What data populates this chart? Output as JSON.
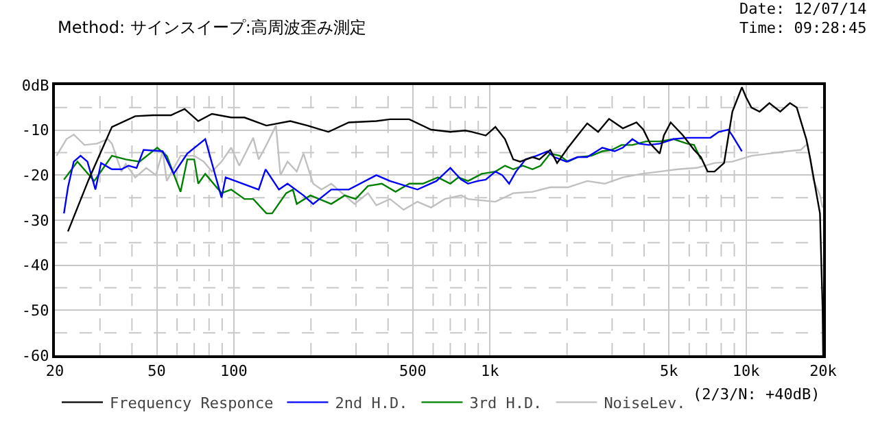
{
  "chart_data": {
    "type": "line",
    "subtitle": "Method: サインスイープ:高周波歪み測定",
    "annotations": [
      "Date: 12/07/14",
      "Time: 09:28:45",
      "(2/3/N: +40dB)"
    ],
    "log": "x",
    "grid": true,
    "legend": "bottom",
    "marker": "none",
    "line_style": "solid",
    "xlim": [
      20,
      20000
    ],
    "xticks": [
      20,
      {
        "value": 30,
        "label": null
      },
      {
        "value": 40,
        "label": null
      },
      50,
      {
        "value": 60,
        "label": null
      },
      {
        "value": 70,
        "label": null
      },
      {
        "value": 80,
        "label": null
      },
      {
        "value": 90,
        "label": null
      },
      100,
      {
        "value": 200,
        "label": null
      },
      {
        "value": 300,
        "label": null
      },
      {
        "value": 400,
        "label": null
      },
      500,
      {
        "value": 600,
        "label": null
      },
      {
        "value": 700,
        "label": null
      },
      {
        "value": 800,
        "label": null
      },
      {
        "value": 900,
        "label": null
      },
      {
        "value": 1000,
        "label": "1k"
      },
      {
        "value": 2000,
        "label": null
      },
      {
        "value": 3000,
        "label": null
      },
      {
        "value": 4000,
        "label": null
      },
      {
        "value": 5000,
        "label": "5k"
      },
      {
        "value": 6000,
        "label": null
      },
      {
        "value": 7000,
        "label": null
      },
      {
        "value": 8000,
        "label": null
      },
      {
        "value": 9000,
        "label": null
      },
      {
        "value": 10000,
        "label": "10k"
      },
      {
        "value": 20000,
        "label": "20k"
      }
    ],
    "ylim": [
      -60,
      0
    ],
    "yticks": [
      {
        "value": -60,
        "label": "-60"
      },
      {
        "value": -55,
        "label": null
      },
      -50,
      {
        "value": -45,
        "label": null
      },
      -40,
      {
        "value": -35,
        "label": null
      },
      -30,
      {
        "value": -25,
        "label": null
      },
      -20,
      {
        "value": -15,
        "label": null
      },
      -10,
      {
        "value": -5,
        "label": null
      },
      {
        "value": 0,
        "label": "0dB"
      }
    ],
    "series": [
      {
        "name": "Frequency Responce",
        "color": "#000000",
        "x": [
          22.5,
          27.1,
          33.4,
          41.2,
          48.3,
          56.8,
          64.2,
          72.6,
          82.1,
          97.6,
          110,
          134,
          166,
          194,
          234,
          281,
          360,
          407,
          484,
          589,
          700,
          801,
          852,
          963,
          1050,
          1145,
          1233,
          1312,
          1466,
          1560,
          1719,
          1829,
          2018,
          2199,
          2398,
          2645,
          2918,
          3303,
          3734,
          3972,
          4224,
          4603,
          4777,
          5080,
          5675,
          6266,
          6664,
          7081,
          7534,
          8207,
          8843,
          9636,
          10000,
          10500,
          11300,
          12330,
          13600,
          14840,
          15780,
          17190,
          17830,
          19440,
          19910,
          20000
        ],
        "values": [
          -32.5,
          -21,
          -9.3,
          -6.9,
          -6.7,
          -6.7,
          -5.3,
          -8,
          -6.4,
          -7.2,
          -7.2,
          -9,
          -8,
          -9,
          -10.4,
          -8.3,
          -8,
          -7.6,
          -7.6,
          -9.9,
          -10.4,
          -10.1,
          -10.4,
          -11.2,
          -9.3,
          -12,
          -16.5,
          -17,
          -16,
          -16.5,
          -14.4,
          -17.3,
          -13.9,
          -11.2,
          -8.5,
          -10.4,
          -7.5,
          -9.6,
          -8.3,
          -9.9,
          -13,
          -15.2,
          -11.2,
          -8.3,
          -11.2,
          -14.4,
          -16,
          -19.2,
          -19.2,
          -17.3,
          -5.9,
          -0.5,
          -2.7,
          -5,
          -5.9,
          -4,
          -5.9,
          -4,
          -5,
          -12,
          -16.5,
          -28.5,
          -50,
          -60
        ]
      },
      {
        "name": "2nd H.D.",
        "color": "#0000ff",
        "x": [
          21.7,
          22.5,
          23.7,
          25.2,
          26.8,
          28.8,
          30.3,
          33.4,
          36.4,
          38.8,
          41.7,
          44.4,
          52.7,
          58.2,
          65.8,
          77.3,
          89.5,
          92.9,
          125,
          133,
          150,
          162,
          187,
          204,
          240,
          281,
          360,
          407,
          521,
          618,
          700,
          772,
          821,
          895,
          963,
          1050,
          1117,
          1188,
          1264,
          1377,
          1520,
          1678,
          1783,
          1991,
          2199,
          2398,
          2747,
          3067,
          3303,
          3598,
          3826,
          4171,
          4603,
          5206,
          5888,
          6416,
          7262,
          7819,
          8518,
          8843,
          9636
        ],
        "values": [
          -28.5,
          -22.7,
          -17,
          -15.7,
          -17,
          -23.2,
          -17.3,
          -18.7,
          -18.7,
          -17.9,
          -18.4,
          -14.4,
          -14.7,
          -19.7,
          -15.2,
          -12,
          -25,
          -20.5,
          -23.2,
          -18.7,
          -23.2,
          -21.9,
          -24.5,
          -26.4,
          -23.2,
          -23.2,
          -20,
          -21.3,
          -23.2,
          -21.3,
          -18.4,
          -21,
          -21.9,
          -21.3,
          -21,
          -19.2,
          -20,
          -21.9,
          -19.2,
          -16.5,
          -15.7,
          -14.7,
          -16,
          -17,
          -16,
          -16,
          -13.9,
          -14.7,
          -13.9,
          -12,
          -13,
          -13.3,
          -13,
          -12,
          -11.7,
          -11.7,
          -11.7,
          -10.4,
          -9.9,
          -11.2,
          -14.7
        ]
      },
      {
        "name": "3rd H.D.",
        "color": "#008000",
        "x": [
          21.7,
          24.5,
          28.5,
          33.4,
          37.8,
          42.8,
          50.2,
          54.7,
          61.9,
          65.8,
          70,
          72.6,
          77.3,
          89.5,
          97.6,
          110,
          119,
          134,
          141,
          160,
          170,
          176,
          199,
          240,
          271,
          299,
          334,
          378,
          428,
          484,
          547,
          626,
          700,
          753,
          821,
          929,
          1050,
          1145,
          1233,
          1344,
          1466,
          1577,
          1719,
          1874,
          2018,
          2199,
          2487,
          2747,
          2992,
          3262,
          3598,
          4071,
          4603,
          5206,
          5888,
          6266,
          6664
        ],
        "values": [
          -21,
          -17,
          -21.3,
          -15.7,
          -16.5,
          -17,
          -13.9,
          -15.7,
          -23.7,
          -16.5,
          -16.5,
          -21.9,
          -19.7,
          -24,
          -23.2,
          -25.3,
          -25.3,
          -28.5,
          -28.5,
          -24,
          -23.2,
          -26.4,
          -24.5,
          -26.4,
          -24.5,
          -25.3,
          -22.4,
          -21.9,
          -23.7,
          -21.9,
          -21.9,
          -20.5,
          -21.9,
          -20.5,
          -21.3,
          -19.7,
          -19.2,
          -17.9,
          -18.7,
          -17.9,
          -18.7,
          -17.9,
          -15.2,
          -15.7,
          -17,
          -16,
          -15.7,
          -14.7,
          -14.4,
          -13.3,
          -13.3,
          -12.5,
          -12.5,
          -12,
          -13,
          -13.3,
          -16.5
        ]
      },
      {
        "name": "NoiseLev.",
        "color": "#c0c0c0",
        "x": [
          20.3,
          22.2,
          23.7,
          26.1,
          29.2,
          32.2,
          33.4,
          36.4,
          37.8,
          41.2,
          45.5,
          49.6,
          52.7,
          54.7,
          61.9,
          70,
          76.3,
          82.1,
          89.5,
          97.6,
          105,
          119,
          125,
          134,
          146,
          152,
          162,
          176,
          187,
          204,
          220,
          240,
          271,
          296,
          334,
          360,
          407,
          460,
          521,
          589,
          666,
          772,
          821,
          1050,
          1233,
          1466,
          1719,
          2018,
          2398,
          2806,
          3303,
          3922,
          4603,
          5407,
          6416,
          7534,
          8843,
          10500,
          12330,
          14460,
          16350,
          17400,
          18300,
          19440,
          19900
        ],
        "values": [
          -15.7,
          -12,
          -11,
          -13.3,
          -13,
          -12,
          -13,
          -19.2,
          -17.5,
          -20.5,
          -18.4,
          -20,
          -14.7,
          -21.3,
          -15.7,
          -15.7,
          -17,
          -19.2,
          -17,
          -13.9,
          -17.9,
          -11.7,
          -16.5,
          -13.3,
          -9,
          -20,
          -17,
          -19.2,
          -15.2,
          -21.9,
          -23.2,
          -21.9,
          -24.5,
          -26.4,
          -24,
          -26.7,
          -25.3,
          -27.7,
          -25.9,
          -27.2,
          -25.3,
          -24.5,
          -25.3,
          -25.9,
          -24,
          -23.7,
          -22.7,
          -22.7,
          -21.3,
          -21.9,
          -20.5,
          -19.7,
          -19.2,
          -18.7,
          -18.4,
          -17.3,
          -17,
          -15.7,
          -15.2,
          -14.7,
          -14.4,
          -13,
          -21,
          -24.5,
          -27.2
        ]
      }
    ]
  }
}
